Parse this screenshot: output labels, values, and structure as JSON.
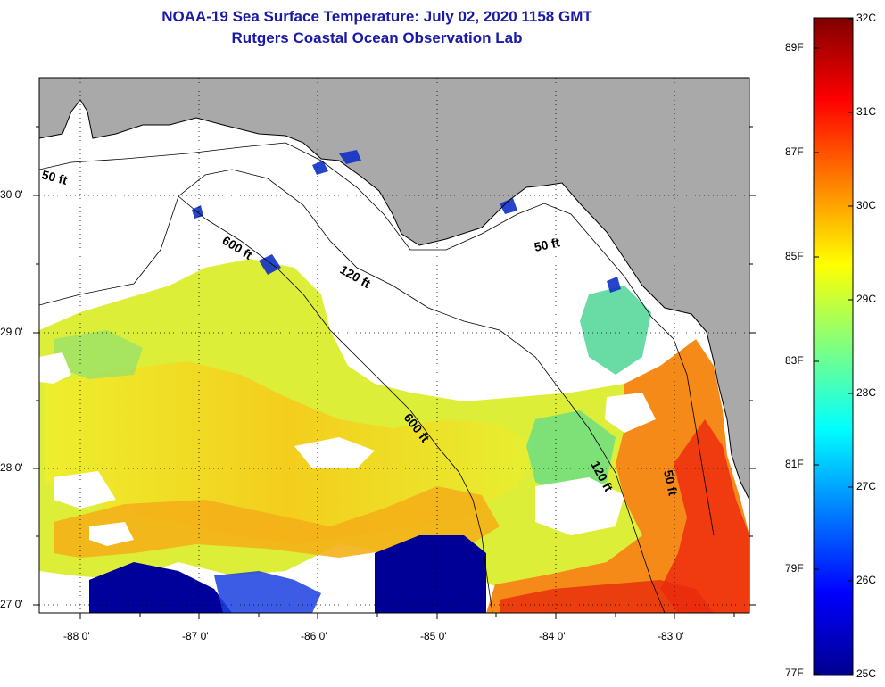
{
  "title": {
    "line1": "NOAA-19 Sea Surface Temperature:  July 02, 2020 1158 GMT",
    "line2": "Rutgers Coastal Ocean Observation Lab"
  },
  "map": {
    "lon_ticks": [
      "-88 0'",
      "-87 0'",
      "-86 0'",
      "-85 0'",
      "-84 0'",
      "-83 0'"
    ],
    "lat_ticks": [
      "30 0'",
      "29 0'",
      "28 0'",
      "27 0'"
    ],
    "lon_range": [
      -88.3,
      -82.35
    ],
    "lat_range": [
      26.97,
      30.83
    ],
    "grid": "dotted",
    "land_color": "#a9a9a9",
    "no_data_color": "#ffffff",
    "contour_labels": {
      "c50_west": "50 ft",
      "c600_north": "600 ft",
      "c120_north": "120 ft",
      "c50_big_bend": "50 ft",
      "c600_south": "600 ft",
      "c120_south": "120 ft",
      "c50_south": "50 ft"
    }
  },
  "colorbar": {
    "celsius_labels": [
      "32C",
      "31C",
      "30C",
      "29C",
      "28C",
      "27C",
      "26C",
      "25C"
    ],
    "fahrenheit_labels": [
      "89F",
      "87F",
      "85F",
      "83F",
      "81F",
      "79F",
      "77F"
    ],
    "range_c": [
      25,
      32
    ],
    "colors": [
      "#00008f",
      "#0000ff",
      "#00ffff",
      "#ffff00",
      "#ff0000",
      "#800000"
    ]
  }
}
